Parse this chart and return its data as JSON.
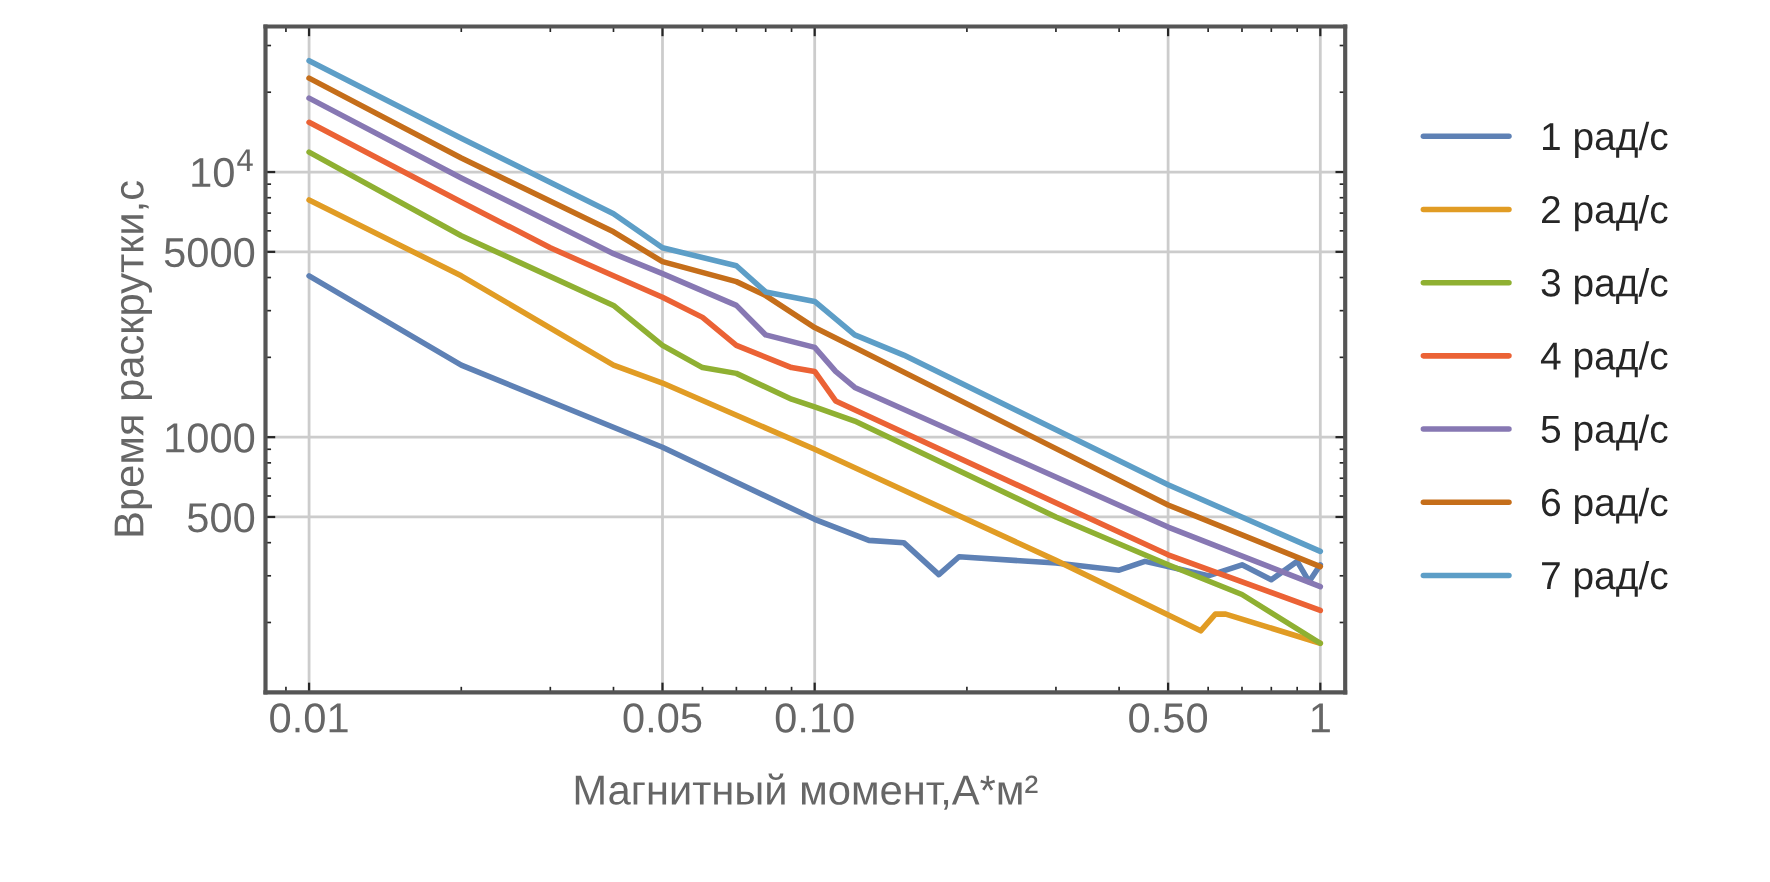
{
  "chart_data": {
    "type": "line",
    "xlabel": "Магнитный момент,А*м²",
    "ylabel": "Время раскрутки,с",
    "log": "xy",
    "grid": true,
    "legend": "right",
    "xlim": [
      0.0082,
      1.12
    ],
    "ylim": [
      109,
      35400
    ],
    "xticks": [
      0.01,
      0.05,
      {
        "value": 0.1,
        "label": "0.10"
      },
      {
        "value": 0.5,
        "label": "0.50"
      },
      1
    ],
    "yticks": [
      500,
      1000,
      5000,
      {
        "value": 10000,
        "label": "10$^{4}$"
      }
    ],
    "series": [
      {
        "name": "1 рад/с",
        "color": "#5e81b5",
        "x": [
          0.01,
          0.02,
          0.05,
          0.1,
          0.128,
          0.15,
          0.176,
          0.193,
          0.3,
          0.4,
          0.45,
          0.5,
          0.6,
          0.7,
          0.8,
          0.9,
          0.95,
          1
        ],
        "values": [
          4060,
          1870,
          916,
          490,
          408,
          400,
          303,
          354,
          335,
          315,
          340,
          325,
          300,
          330,
          290,
          340,
          285,
          330
        ]
      },
      {
        "name": "2 рад/с",
        "color": "#e19c24",
        "x": [
          0.01,
          0.02,
          0.04,
          0.05,
          0.1,
          0.3,
          0.58,
          0.62,
          0.65,
          1
        ],
        "values": [
          7850,
          4060,
          1870,
          1600,
          900,
          343,
          186,
          215,
          215,
          167
        ]
      },
      {
        "name": "3 рад/с",
        "color": "#8fb032",
        "x": [
          0.01,
          0.02,
          0.04,
          0.05,
          0.06,
          0.07,
          0.09,
          0.1,
          0.12,
          0.3,
          0.5,
          0.7,
          1
        ],
        "values": [
          11890,
          5750,
          3140,
          2220,
          1830,
          1740,
          1390,
          1300,
          1150,
          500,
          330,
          255,
          167
        ]
      },
      {
        "name": "4 рад/с",
        "color": "#eb6235",
        "x": [
          0.01,
          0.02,
          0.03,
          0.04,
          0.05,
          0.06,
          0.07,
          0.09,
          0.1,
          0.11,
          0.5,
          1
        ],
        "values": [
          15400,
          7710,
          5180,
          4060,
          3370,
          2830,
          2220,
          1830,
          1770,
          1370,
          360,
          222
        ]
      },
      {
        "name": "5 рад/с",
        "color": "#8778b3",
        "x": [
          0.01,
          0.02,
          0.04,
          0.05,
          0.07,
          0.08,
          0.1,
          0.11,
          0.12,
          0.5,
          1
        ],
        "values": [
          19000,
          9500,
          4920,
          4140,
          3140,
          2430,
          2180,
          1770,
          1540,
          458,
          273
        ]
      },
      {
        "name": "6 рад/с",
        "color": "#c56e1a",
        "x": [
          0.01,
          0.02,
          0.04,
          0.05,
          0.07,
          0.08,
          0.1,
          0.12,
          0.5,
          1
        ],
        "values": [
          22600,
          11300,
          5950,
          4590,
          3860,
          3420,
          2590,
          2180,
          555,
          325
        ]
      },
      {
        "name": "7 рад/с",
        "color": "#5d9ec7",
        "x": [
          0.01,
          0.02,
          0.04,
          0.05,
          0.07,
          0.08,
          0.1,
          0.12,
          0.15,
          0.5,
          1
        ],
        "values": [
          26300,
          13400,
          6960,
          5180,
          4430,
          3530,
          3250,
          2430,
          2040,
          661,
          371
        ]
      }
    ]
  }
}
